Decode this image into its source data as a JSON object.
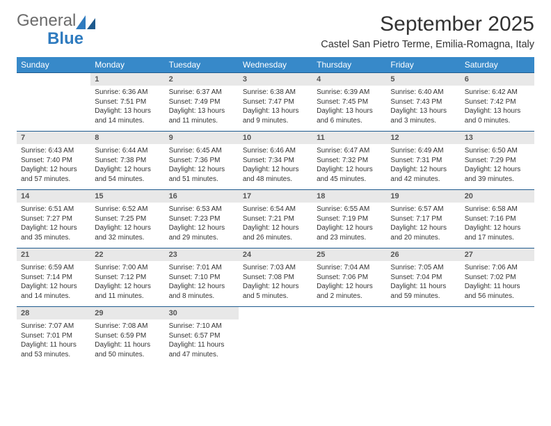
{
  "brand": {
    "general": "General",
    "blue": "Blue"
  },
  "title": "September 2025",
  "subtitle": "Castel San Pietro Terme, Emilia-Romagna, Italy",
  "colors": {
    "header_bg": "#3789c9",
    "header_text": "#ffffff",
    "daynum_bg": "#e8e8e8",
    "rule": "#1e5a8e",
    "text": "#333333",
    "logo_gray": "#6b6b6b",
    "logo_blue": "#2f7bbf"
  },
  "weekdays": [
    "Sunday",
    "Monday",
    "Tuesday",
    "Wednesday",
    "Thursday",
    "Friday",
    "Saturday"
  ],
  "weeks": [
    [
      {
        "n": "",
        "lines": [
          "",
          "",
          "",
          ""
        ]
      },
      {
        "n": "1",
        "lines": [
          "Sunrise: 6:36 AM",
          "Sunset: 7:51 PM",
          "Daylight: 13 hours",
          "and 14 minutes."
        ]
      },
      {
        "n": "2",
        "lines": [
          "Sunrise: 6:37 AM",
          "Sunset: 7:49 PM",
          "Daylight: 13 hours",
          "and 11 minutes."
        ]
      },
      {
        "n": "3",
        "lines": [
          "Sunrise: 6:38 AM",
          "Sunset: 7:47 PM",
          "Daylight: 13 hours",
          "and 9 minutes."
        ]
      },
      {
        "n": "4",
        "lines": [
          "Sunrise: 6:39 AM",
          "Sunset: 7:45 PM",
          "Daylight: 13 hours",
          "and 6 minutes."
        ]
      },
      {
        "n": "5",
        "lines": [
          "Sunrise: 6:40 AM",
          "Sunset: 7:43 PM",
          "Daylight: 13 hours",
          "and 3 minutes."
        ]
      },
      {
        "n": "6",
        "lines": [
          "Sunrise: 6:42 AM",
          "Sunset: 7:42 PM",
          "Daylight: 13 hours",
          "and 0 minutes."
        ]
      }
    ],
    [
      {
        "n": "7",
        "lines": [
          "Sunrise: 6:43 AM",
          "Sunset: 7:40 PM",
          "Daylight: 12 hours",
          "and 57 minutes."
        ]
      },
      {
        "n": "8",
        "lines": [
          "Sunrise: 6:44 AM",
          "Sunset: 7:38 PM",
          "Daylight: 12 hours",
          "and 54 minutes."
        ]
      },
      {
        "n": "9",
        "lines": [
          "Sunrise: 6:45 AM",
          "Sunset: 7:36 PM",
          "Daylight: 12 hours",
          "and 51 minutes."
        ]
      },
      {
        "n": "10",
        "lines": [
          "Sunrise: 6:46 AM",
          "Sunset: 7:34 PM",
          "Daylight: 12 hours",
          "and 48 minutes."
        ]
      },
      {
        "n": "11",
        "lines": [
          "Sunrise: 6:47 AM",
          "Sunset: 7:32 PM",
          "Daylight: 12 hours",
          "and 45 minutes."
        ]
      },
      {
        "n": "12",
        "lines": [
          "Sunrise: 6:49 AM",
          "Sunset: 7:31 PM",
          "Daylight: 12 hours",
          "and 42 minutes."
        ]
      },
      {
        "n": "13",
        "lines": [
          "Sunrise: 6:50 AM",
          "Sunset: 7:29 PM",
          "Daylight: 12 hours",
          "and 39 minutes."
        ]
      }
    ],
    [
      {
        "n": "14",
        "lines": [
          "Sunrise: 6:51 AM",
          "Sunset: 7:27 PM",
          "Daylight: 12 hours",
          "and 35 minutes."
        ]
      },
      {
        "n": "15",
        "lines": [
          "Sunrise: 6:52 AM",
          "Sunset: 7:25 PM",
          "Daylight: 12 hours",
          "and 32 minutes."
        ]
      },
      {
        "n": "16",
        "lines": [
          "Sunrise: 6:53 AM",
          "Sunset: 7:23 PM",
          "Daylight: 12 hours",
          "and 29 minutes."
        ]
      },
      {
        "n": "17",
        "lines": [
          "Sunrise: 6:54 AM",
          "Sunset: 7:21 PM",
          "Daylight: 12 hours",
          "and 26 minutes."
        ]
      },
      {
        "n": "18",
        "lines": [
          "Sunrise: 6:55 AM",
          "Sunset: 7:19 PM",
          "Daylight: 12 hours",
          "and 23 minutes."
        ]
      },
      {
        "n": "19",
        "lines": [
          "Sunrise: 6:57 AM",
          "Sunset: 7:17 PM",
          "Daylight: 12 hours",
          "and 20 minutes."
        ]
      },
      {
        "n": "20",
        "lines": [
          "Sunrise: 6:58 AM",
          "Sunset: 7:16 PM",
          "Daylight: 12 hours",
          "and 17 minutes."
        ]
      }
    ],
    [
      {
        "n": "21",
        "lines": [
          "Sunrise: 6:59 AM",
          "Sunset: 7:14 PM",
          "Daylight: 12 hours",
          "and 14 minutes."
        ]
      },
      {
        "n": "22",
        "lines": [
          "Sunrise: 7:00 AM",
          "Sunset: 7:12 PM",
          "Daylight: 12 hours",
          "and 11 minutes."
        ]
      },
      {
        "n": "23",
        "lines": [
          "Sunrise: 7:01 AM",
          "Sunset: 7:10 PM",
          "Daylight: 12 hours",
          "and 8 minutes."
        ]
      },
      {
        "n": "24",
        "lines": [
          "Sunrise: 7:03 AM",
          "Sunset: 7:08 PM",
          "Daylight: 12 hours",
          "and 5 minutes."
        ]
      },
      {
        "n": "25",
        "lines": [
          "Sunrise: 7:04 AM",
          "Sunset: 7:06 PM",
          "Daylight: 12 hours",
          "and 2 minutes."
        ]
      },
      {
        "n": "26",
        "lines": [
          "Sunrise: 7:05 AM",
          "Sunset: 7:04 PM",
          "Daylight: 11 hours",
          "and 59 minutes."
        ]
      },
      {
        "n": "27",
        "lines": [
          "Sunrise: 7:06 AM",
          "Sunset: 7:02 PM",
          "Daylight: 11 hours",
          "and 56 minutes."
        ]
      }
    ],
    [
      {
        "n": "28",
        "lines": [
          "Sunrise: 7:07 AM",
          "Sunset: 7:01 PM",
          "Daylight: 11 hours",
          "and 53 minutes."
        ]
      },
      {
        "n": "29",
        "lines": [
          "Sunrise: 7:08 AM",
          "Sunset: 6:59 PM",
          "Daylight: 11 hours",
          "and 50 minutes."
        ]
      },
      {
        "n": "30",
        "lines": [
          "Sunrise: 7:10 AM",
          "Sunset: 6:57 PM",
          "Daylight: 11 hours",
          "and 47 minutes."
        ]
      },
      {
        "n": "",
        "lines": [
          "",
          "",
          "",
          ""
        ]
      },
      {
        "n": "",
        "lines": [
          "",
          "",
          "",
          ""
        ]
      },
      {
        "n": "",
        "lines": [
          "",
          "",
          "",
          ""
        ]
      },
      {
        "n": "",
        "lines": [
          "",
          "",
          "",
          ""
        ]
      }
    ]
  ]
}
